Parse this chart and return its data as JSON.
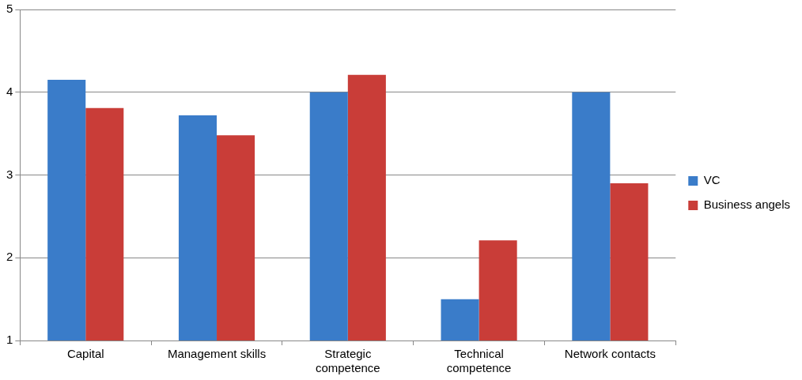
{
  "chart_data": {
    "type": "bar",
    "categories": [
      "Capital",
      "Management skills",
      "Strategic competence",
      "Technical competence",
      "Network contacts"
    ],
    "series": [
      {
        "name": "VC",
        "color": "#3a7cc9",
        "values": [
          4.15,
          3.72,
          4.0,
          1.5,
          4.0
        ]
      },
      {
        "name": "Business angels",
        "color": "#c93d38",
        "values": [
          3.81,
          3.48,
          4.21,
          2.21,
          2.9
        ]
      }
    ],
    "ylim": [
      1,
      5
    ],
    "yticks": [
      1,
      2,
      3,
      4,
      5
    ],
    "grid": "y",
    "legend": "right"
  }
}
